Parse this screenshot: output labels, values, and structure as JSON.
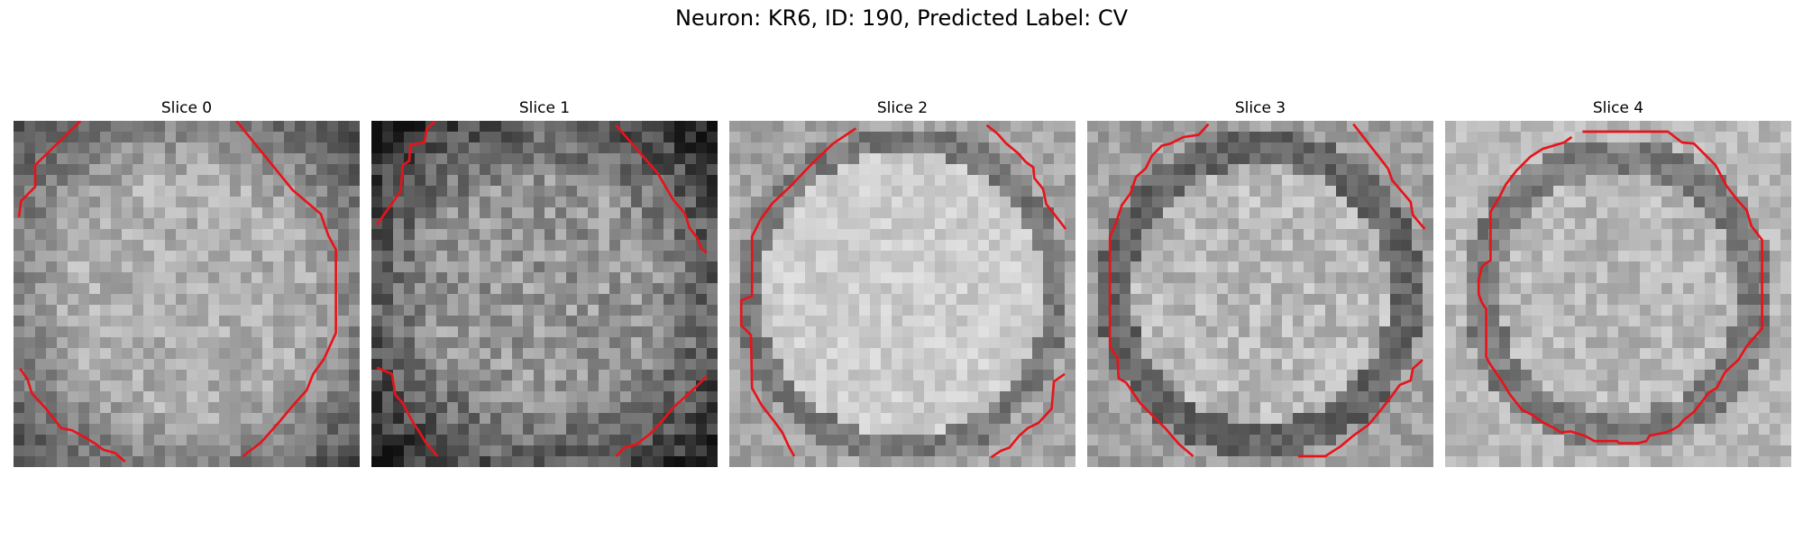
{
  "figure": {
    "title": "Neuron: KR6, ID: 190, Predicted Label: CV",
    "contour_color": "#e8131a",
    "colormap": "grayscale",
    "image_grid": "32x32 pixels per slice"
  },
  "panels": [
    {
      "title": "Slice 0",
      "contour": [
        [
          [
            6.2,
            0.0
          ],
          [
            2.0,
            4.1
          ],
          [
            2.0,
            6.1
          ],
          [
            0.7,
            7.4
          ],
          [
            0.5,
            8.9
          ]
        ],
        [
          [
            20.6,
            0.0
          ],
          [
            25.8,
            6.4
          ],
          [
            28.4,
            8.6
          ],
          [
            29.1,
            10.6
          ],
          [
            29.8,
            11.9
          ],
          [
            29.8,
            19.6
          ],
          [
            28.7,
            22.0
          ],
          [
            27.7,
            23.4
          ],
          [
            27.1,
            24.9
          ],
          [
            26.1,
            26.0
          ],
          [
            24.5,
            27.9
          ],
          [
            22.9,
            29.7
          ],
          [
            21.2,
            31.0
          ]
        ],
        [
          [
            0.6,
            22.9
          ],
          [
            1.3,
            23.9
          ],
          [
            1.7,
            25.2
          ],
          [
            3.0,
            26.6
          ],
          [
            3.7,
            27.5
          ],
          [
            4.4,
            28.4
          ],
          [
            5.4,
            28.6
          ],
          [
            6.5,
            29.2
          ],
          [
            7.5,
            29.8
          ],
          [
            8.3,
            30.4
          ],
          [
            9.4,
            30.7
          ],
          [
            10.3,
            31.5
          ]
        ]
      ]
    },
    {
      "title": "Slice 1",
      "contour": [
        [
          [
            5.9,
            0.0
          ],
          [
            5.1,
            0.8
          ],
          [
            4.9,
            2.0
          ],
          [
            3.6,
            2.2
          ],
          [
            3.5,
            3.7
          ],
          [
            2.9,
            4.1
          ],
          [
            2.7,
            6.5
          ],
          [
            2.0,
            7.5
          ],
          [
            0.5,
            9.6
          ]
        ],
        [
          [
            22.6,
            0.4
          ],
          [
            26.5,
            4.9
          ],
          [
            27.9,
            7.3
          ],
          [
            29.0,
            8.6
          ],
          [
            29.4,
            9.9
          ],
          [
            30.1,
            10.8
          ],
          [
            30.5,
            11.8
          ],
          [
            31.0,
            12.2
          ]
        ],
        [
          [
            0.5,
            22.8
          ],
          [
            1.9,
            23.4
          ],
          [
            2.2,
            25.3
          ],
          [
            2.9,
            26.1
          ],
          [
            3.8,
            27.8
          ],
          [
            4.4,
            28.7
          ],
          [
            5.0,
            29.7
          ],
          [
            6.1,
            31.0
          ]
        ],
        [
          [
            31.0,
            23.6
          ],
          [
            30.0,
            24.6
          ],
          [
            27.8,
            26.6
          ],
          [
            27.0,
            27.6
          ],
          [
            25.8,
            28.9
          ],
          [
            24.5,
            29.9
          ],
          [
            23.4,
            30.2
          ],
          [
            22.6,
            31.0
          ]
        ]
      ]
    },
    {
      "title": "Slice 2",
      "contour": [
        [
          [
            11.7,
            0.7
          ],
          [
            9.6,
            2.1
          ],
          [
            7.7,
            3.9
          ],
          [
            5.6,
            6.1
          ],
          [
            4.0,
            7.6
          ],
          [
            2.9,
            9.1
          ],
          [
            2.1,
            10.7
          ],
          [
            2.1,
            16.2
          ],
          [
            1.1,
            16.6
          ],
          [
            1.1,
            18.9
          ],
          [
            2.0,
            19.8
          ],
          [
            2.1,
            24.7
          ],
          [
            3.0,
            26.3
          ],
          [
            4.1,
            27.7
          ],
          [
            4.9,
            28.8
          ],
          [
            5.5,
            30.1
          ],
          [
            6.0,
            31.0
          ]
        ],
        [
          [
            23.8,
            0.4
          ],
          [
            24.8,
            1.2
          ],
          [
            25.6,
            2.1
          ],
          [
            26.7,
            3.0
          ],
          [
            27.4,
            3.8
          ],
          [
            28.1,
            4.3
          ],
          [
            28.2,
            5.3
          ],
          [
            29.0,
            6.3
          ],
          [
            29.3,
            7.7
          ],
          [
            30.4,
            9.1
          ],
          [
            31.1,
            10.0
          ]
        ],
        [
          [
            31.0,
            23.4
          ],
          [
            30.0,
            24.1
          ],
          [
            29.8,
            26.6
          ],
          [
            28.6,
            27.9
          ],
          [
            27.6,
            28.4
          ],
          [
            26.8,
            29.1
          ],
          [
            25.9,
            30.2
          ],
          [
            25.1,
            30.5
          ],
          [
            24.2,
            31.1
          ]
        ]
      ]
    },
    {
      "title": "Slice 3",
      "contour": [
        [
          [
            11.2,
            0.3
          ],
          [
            10.3,
            1.3
          ],
          [
            8.9,
            1.5
          ],
          [
            7.7,
            2.1
          ],
          [
            6.9,
            2.3
          ],
          [
            6.0,
            3.2
          ],
          [
            5.4,
            4.4
          ],
          [
            4.5,
            5.2
          ],
          [
            4.0,
            6.7
          ],
          [
            3.2,
            7.8
          ],
          [
            2.6,
            9.6
          ],
          [
            2.1,
            10.7
          ],
          [
            2.1,
            20.9
          ],
          [
            2.8,
            21.9
          ],
          [
            2.9,
            23.8
          ],
          [
            3.6,
            24.2
          ],
          [
            4.9,
            26.1
          ],
          [
            7.2,
            28.4
          ],
          [
            8.5,
            29.9
          ],
          [
            9.8,
            31.0
          ]
        ],
        [
          [
            24.6,
            0.3
          ],
          [
            27.8,
            4.4
          ],
          [
            28.2,
            5.5
          ],
          [
            29.9,
            7.5
          ],
          [
            30.1,
            8.7
          ],
          [
            31.2,
            10.0
          ]
        ],
        [
          [
            19.5,
            31.0
          ],
          [
            22.0,
            31.0
          ],
          [
            23.4,
            30.1
          ],
          [
            24.6,
            29.1
          ],
          [
            26.0,
            28.1
          ],
          [
            27.0,
            26.9
          ],
          [
            28.1,
            25.5
          ],
          [
            28.9,
            24.4
          ],
          [
            29.9,
            24.0
          ],
          [
            30.1,
            22.9
          ],
          [
            31.0,
            22.1
          ]
        ]
      ]
    },
    {
      "title": "Slice 4",
      "contour": [
        [
          [
            12.7,
            1.0
          ],
          [
            20.6,
            1.0
          ],
          [
            21.9,
            2.0
          ],
          [
            23.0,
            2.1
          ],
          [
            25.0,
            4.1
          ],
          [
            26.0,
            6.0
          ],
          [
            27.0,
            7.3
          ],
          [
            27.9,
            8.3
          ],
          [
            28.3,
            9.7
          ],
          [
            29.3,
            11.0
          ],
          [
            29.3,
            19.2
          ],
          [
            27.9,
            20.8
          ],
          [
            27.1,
            22.1
          ],
          [
            25.9,
            23.2
          ],
          [
            25.1,
            24.7
          ],
          [
            24.4,
            25.1
          ],
          [
            23.0,
            26.9
          ],
          [
            22.0,
            27.7
          ],
          [
            21.6,
            28.2
          ],
          [
            21.1,
            28.5
          ],
          [
            20.4,
            28.8
          ],
          [
            18.9,
            29.1
          ],
          [
            18.6,
            29.6
          ],
          [
            17.8,
            29.8
          ],
          [
            16.1,
            29.8
          ],
          [
            15.9,
            29.6
          ],
          [
            13.8,
            29.6
          ],
          [
            12.9,
            29.1
          ],
          [
            11.6,
            28.7
          ],
          [
            10.7,
            28.8
          ],
          [
            10.1,
            28.4
          ],
          [
            8.9,
            27.8
          ],
          [
            8.1,
            27.2
          ],
          [
            7.1,
            26.7
          ],
          [
            6.0,
            25.3
          ],
          [
            5.2,
            24.0
          ],
          [
            4.1,
            22.4
          ],
          [
            3.8,
            21.8
          ],
          [
            3.8,
            17.4
          ],
          [
            3.4,
            16.8
          ],
          [
            3.1,
            16.0
          ],
          [
            3.1,
            14.7
          ],
          [
            3.4,
            13.5
          ],
          [
            3.7,
            13.2
          ],
          [
            4.2,
            12.9
          ],
          [
            4.2,
            8.4
          ],
          [
            5.0,
            7.1
          ],
          [
            5.6,
            5.9
          ],
          [
            6.6,
            4.6
          ],
          [
            7.9,
            3.3
          ],
          [
            9.0,
            2.6
          ],
          [
            11.0,
            2.0
          ],
          [
            11.7,
            1.5
          ]
        ]
      ]
    }
  ]
}
